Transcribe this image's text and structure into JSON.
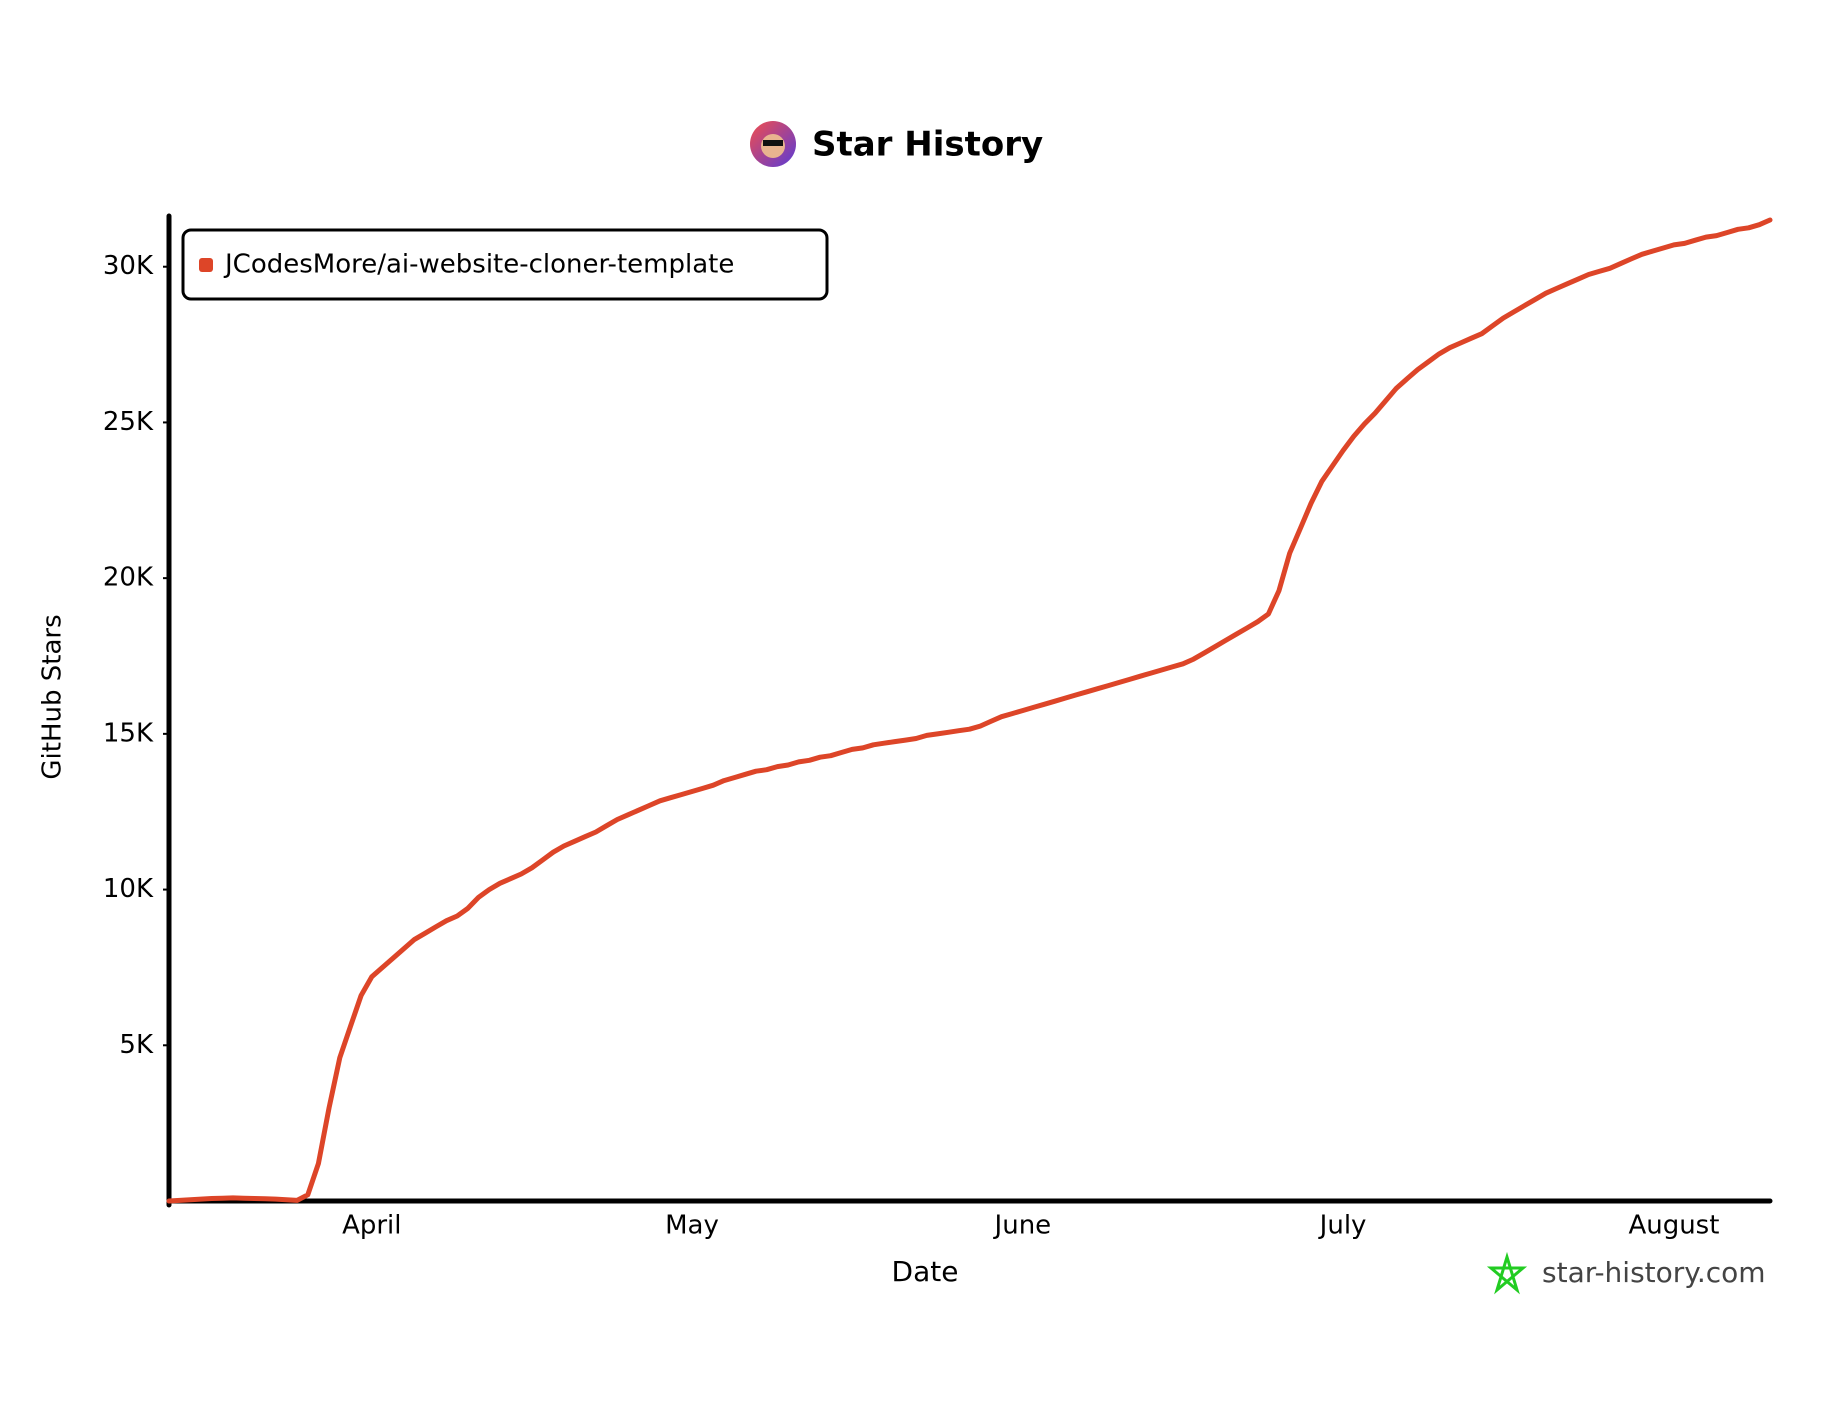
{
  "chart_data": {
    "type": "line",
    "title": "Star History",
    "xlabel": "Date",
    "ylabel": "GitHub Stars",
    "legend": "upper left",
    "watermark": "star-history.com",
    "categories": [
      null,
      null,
      null,
      null,
      null,
      null,
      null,
      null,
      null,
      null,
      null,
      null,
      null,
      null,
      null,
      null,
      null,
      null,
      null,
      "April",
      null,
      null,
      null,
      null,
      null,
      null,
      null,
      null,
      null,
      null,
      null,
      null,
      null,
      null,
      null,
      null,
      null,
      null,
      null,
      null,
      null,
      null,
      null,
      null,
      null,
      null,
      null,
      null,
      null,
      "May",
      null,
      null,
      null,
      null,
      null,
      null,
      null,
      null,
      null,
      null,
      null,
      null,
      null,
      null,
      null,
      null,
      null,
      null,
      null,
      null,
      null,
      null,
      null,
      null,
      null,
      null,
      null,
      null,
      null,
      null,
      "June",
      null,
      null,
      null,
      null,
      null,
      null,
      null,
      null,
      null,
      null,
      null,
      null,
      null,
      null,
      null,
      null,
      null,
      null,
      null,
      null,
      null,
      null,
      null,
      null,
      null,
      null,
      null,
      null,
      null,
      "July",
      null,
      null,
      null,
      null,
      null,
      null,
      null,
      null,
      null,
      null,
      null,
      null,
      null,
      null,
      null,
      null,
      null,
      null,
      null,
      null,
      null,
      null,
      null,
      null,
      null,
      null,
      null,
      null,
      null,
      null,
      "August",
      null,
      null,
      null,
      null,
      null,
      null,
      null,
      null,
      null
    ],
    "series": [
      {
        "name": "JCodesMore/ai-website-cloner-template",
        "color": "#dd4528",
        "values": [
          0,
          20,
          40,
          60,
          80,
          90,
          100,
          90,
          80,
          70,
          60,
          40,
          20,
          200,
          1200,
          3000,
          4600,
          5600,
          6600,
          7200,
          7500,
          7800,
          8100,
          8400,
          8600,
          8800,
          9000,
          9150,
          9400,
          9750,
          10000,
          10200,
          10350,
          10500,
          10700,
          10950,
          11200,
          11400,
          11550,
          11700,
          11850,
          12050,
          12250,
          12400,
          12550,
          12700,
          12850,
          12950,
          13050,
          13150,
          13250,
          13350,
          13500,
          13600,
          13700,
          13800,
          13850,
          13950,
          14000,
          14100,
          14150,
          14250,
          14300,
          14400,
          14500,
          14550,
          14650,
          14700,
          14750,
          14800,
          14850,
          14950,
          15000,
          15050,
          15100,
          15150,
          15250,
          15400,
          15550,
          15650,
          15750,
          15850,
          15950,
          16050,
          16150,
          16250,
          16350,
          16450,
          16550,
          16650,
          16750,
          16850,
          16950,
          17050,
          17150,
          17250,
          17400,
          17600,
          17800,
          18000,
          18200,
          18400,
          18600,
          18850,
          19600,
          20800,
          21600,
          22400,
          23100,
          23600,
          24100,
          24550,
          24950,
          25300,
          25700,
          26100,
          26400,
          26700,
          26950,
          27200,
          27400,
          27550,
          27700,
          27850,
          28100,
          28350,
          28550,
          28750,
          28950,
          29150,
          29300,
          29450,
          29600,
          29750,
          29850,
          29950,
          30100,
          30250,
          30400,
          30500,
          30600,
          30700,
          30750,
          30850,
          30950,
          31000,
          31100,
          31200,
          31250,
          31350,
          31500
        ]
      }
    ],
    "ylim": [
      0,
      31500
    ],
    "yticks": [
      {
        "value": 5000,
        "label": "5K"
      },
      {
        "value": 10000,
        "label": "10K"
      },
      {
        "value": 15000,
        "label": "15K"
      },
      {
        "value": 20000,
        "label": "20K"
      },
      {
        "value": 25000,
        "label": "25K"
      },
      {
        "value": 30000,
        "label": "30K"
      }
    ]
  }
}
